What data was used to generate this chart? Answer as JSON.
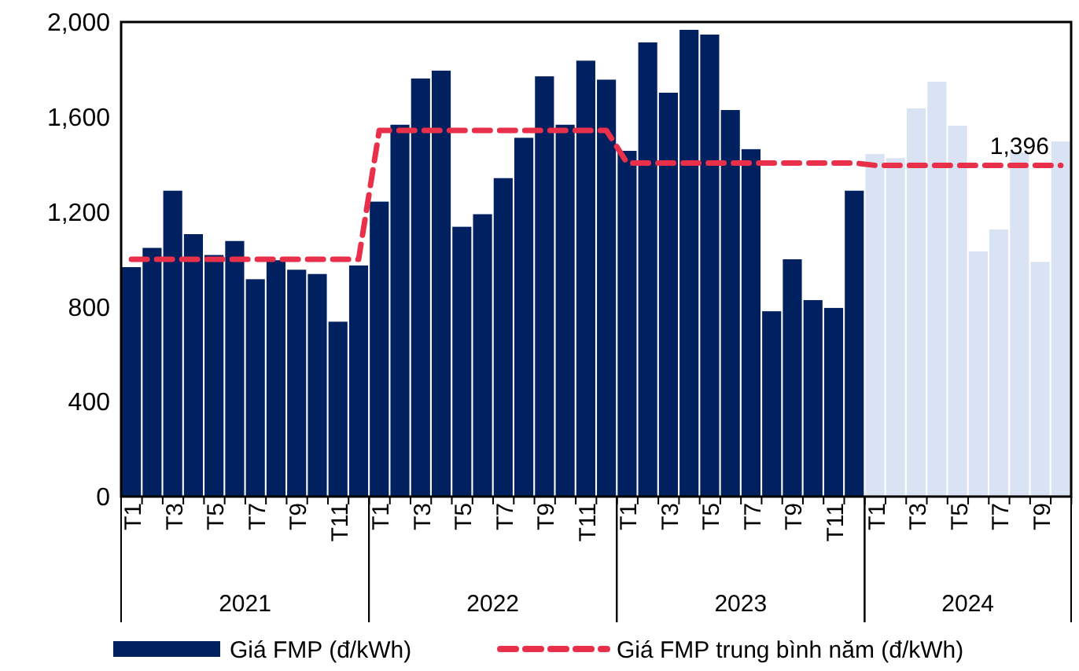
{
  "chart_data": {
    "type": "bar",
    "categories": [
      "T1",
      null,
      "T3",
      null,
      "T5",
      null,
      "T7",
      null,
      "T9",
      null,
      "T11",
      null,
      "T1",
      null,
      "T3",
      null,
      "T5",
      null,
      "T7",
      null,
      "T9",
      null,
      "T11",
      null,
      "T1",
      null,
      "T3",
      null,
      "T5",
      null,
      "T7",
      null,
      "T9",
      null,
      "T11",
      null,
      "T1",
      null,
      "T3",
      null,
      "T5",
      null,
      "T7",
      null,
      "T9",
      null
    ],
    "annotations": [
      "2021",
      "2022",
      "2023",
      "2024"
    ],
    "series": [
      {
        "name": "Giá FMP (đ/kWh)",
        "color": "#002060",
        "colors": [
          "#002060",
          "#002060",
          "#002060",
          "#002060",
          "#002060",
          "#002060",
          "#002060",
          "#002060",
          "#002060",
          "#002060",
          "#002060",
          "#002060",
          "#002060",
          "#002060",
          "#002060",
          "#002060",
          "#002060",
          "#002060",
          "#002060",
          "#002060",
          "#002060",
          "#002060",
          "#002060",
          "#002060",
          "#002060",
          "#002060",
          "#002060",
          "#002060",
          "#002060",
          "#002060",
          "#002060",
          "#002060",
          "#002060",
          "#002060",
          "#002060",
          "#002060",
          "#dae3f3",
          "#dae3f3",
          "#dae3f3",
          "#dae3f3",
          "#dae3f3",
          "#dae3f3",
          "#dae3f3",
          "#dae3f3",
          "#dae3f3",
          "#dae3f3"
        ],
        "values": [
          967,
          1048,
          1289,
          1106,
          1018,
          1077,
          916,
          996,
          956,
          938,
          737,
          974,
          1243,
          1567,
          1762,
          1795,
          1137,
          1190,
          1342,
          1512,
          1771,
          1567,
          1837,
          1757,
          1457,
          1914,
          1702,
          1967,
          1947,
          1629,
          1464,
          781,
          1000,
          828,
          795,
          1289,
          1444,
          1426,
          1636,
          1748,
          1563,
          1033,
          1126,
          1450,
          989,
          1497
        ]
      },
      {
        "name": "Giá FMP trung bình năm (đ/kWh)",
        "type": "line",
        "line_style": "dashed",
        "marker": "none",
        "color": "#e8304a",
        "values": [
          1000,
          1000,
          1000,
          1000,
          1000,
          1000,
          1000,
          1000,
          1000,
          1000,
          1000,
          1000,
          1543,
          1543,
          1543,
          1543,
          1543,
          1543,
          1543,
          1543,
          1543,
          1543,
          1543,
          1543,
          1406,
          1406,
          1406,
          1406,
          1406,
          1406,
          1406,
          1406,
          1406,
          1406,
          1406,
          1406,
          1396,
          1396,
          1396,
          1396,
          1396,
          1396,
          1396,
          1396,
          1396,
          1396
        ],
        "value_labels": [
          null,
          null,
          null,
          null,
          null,
          null,
          null,
          null,
          null,
          null,
          null,
          null,
          null,
          null,
          null,
          null,
          null,
          null,
          null,
          null,
          null,
          null,
          null,
          null,
          null,
          null,
          null,
          null,
          null,
          null,
          null,
          null,
          null,
          null,
          null,
          null,
          null,
          null,
          null,
          null,
          null,
          null,
          null,
          "1,396",
          null,
          null
        ]
      }
    ],
    "ylim": [
      0,
      2000
    ],
    "yticks": [
      0,
      {
        "value": 400,
        "label": "400"
      },
      {
        "value": 800,
        "label": "800"
      },
      {
        "value": 1200,
        "label": "1,200"
      },
      {
        "value": 1600,
        "label": "1,600"
      },
      {
        "value": 2000,
        "label": "2,000"
      }
    ],
    "grid": false,
    "legend": "bottom"
  }
}
